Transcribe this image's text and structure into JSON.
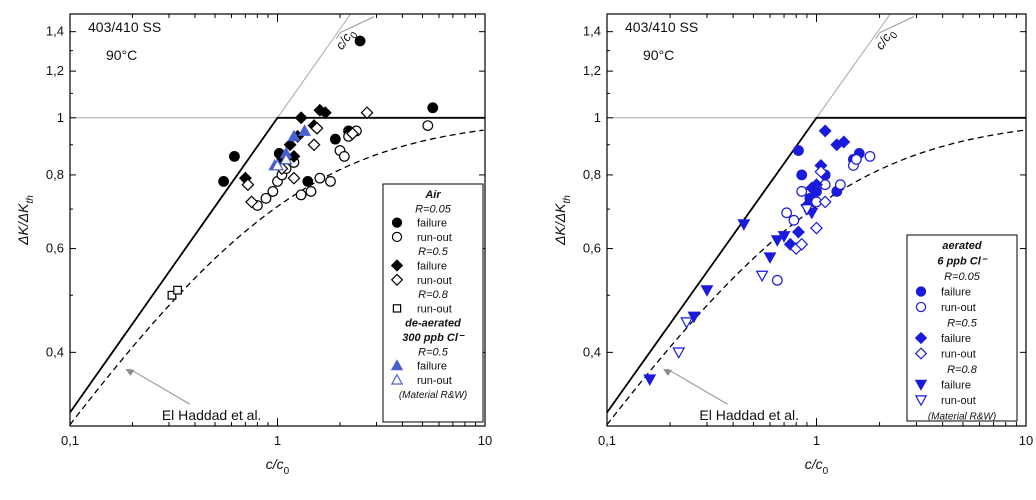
{
  "chart_data": [
    {
      "type": "scatter",
      "xscale": "log",
      "yscale": "log",
      "xlim": [
        0.1,
        10
      ],
      "ylim": [
        0.3,
        1.5
      ],
      "x_ticks": [
        0.1,
        1,
        10
      ],
      "x_tick_labels": [
        "0,1",
        "1",
        "10"
      ],
      "y_ticks": [
        0.4,
        0.6,
        0.8,
        1,
        1.2,
        1.4
      ],
      "y_tick_labels": [
        "0,4",
        "0,6",
        "0,8",
        "1",
        "1,2",
        "1,4"
      ],
      "xlabel": "c/c₀",
      "ylabel": "ΔK/ΔK_th",
      "xlabel_main": "c/c",
      "xlabel_sub": "0",
      "ylabel_main": "ΔK/ΔK",
      "ylabel_sub": "th",
      "material_label": "403/410 SS",
      "temperature_label": "90°C",
      "line_label": "c/c₀",
      "model_label": "El Haddad et al.",
      "legend": {
        "position": "bottom-right",
        "groups": [
          {
            "heading": "Air",
            "entries": [
              {
                "type": "r",
                "text": "R=0.05"
              },
              {
                "type": "marker",
                "marker": "circle-filled",
                "label": "failure"
              },
              {
                "type": "marker",
                "marker": "circle-open",
                "label": "run-out"
              },
              {
                "type": "r",
                "text": "R=0.5"
              },
              {
                "type": "marker",
                "marker": "diamond-filled",
                "label": "failure"
              },
              {
                "type": "marker",
                "marker": "diamond-open",
                "label": "run-out"
              },
              {
                "type": "r",
                "text": "R=0.8"
              },
              {
                "type": "marker",
                "marker": "square-open",
                "label": "run-out"
              }
            ]
          },
          {
            "heading": "de-aerated",
            "entries": [
              {
                "type": "subhead",
                "text": "300 ppb Cl⁻"
              },
              {
                "type": "r",
                "text": "R=0.5"
              },
              {
                "type": "marker",
                "marker": "triangle-up-filled",
                "label": "failure"
              },
              {
                "type": "marker",
                "marker": "triangle-up-open",
                "label": "run-out"
              },
              {
                "type": "note",
                "text": "(Material R&W)"
              }
            ]
          }
        ]
      },
      "series": [
        {
          "marker": "circle-filled",
          "color": "#000000",
          "points": [
            [
              0.55,
              0.78
            ],
            [
              0.62,
              0.86
            ],
            [
              1.02,
              0.87
            ],
            [
              1.05,
              0.85
            ],
            [
              1.4,
              0.78
            ],
            [
              1.9,
              0.92
            ],
            [
              2.2,
              0.95
            ],
            [
              2.5,
              1.35
            ],
            [
              5.6,
              1.04
            ]
          ]
        },
        {
          "marker": "circle-open",
          "color": "#000000",
          "points": [
            [
              0.8,
              0.71
            ],
            [
              0.88,
              0.73
            ],
            [
              0.95,
              0.75
            ],
            [
              1.0,
              0.78
            ],
            [
              1.05,
              0.8
            ],
            [
              1.1,
              0.82
            ],
            [
              1.2,
              0.84
            ],
            [
              1.3,
              0.74
            ],
            [
              1.45,
              0.75
            ],
            [
              1.6,
              0.79
            ],
            [
              1.8,
              0.78
            ],
            [
              2.0,
              0.88
            ],
            [
              2.1,
              0.86
            ],
            [
              2.2,
              0.93
            ],
            [
              2.4,
              0.95
            ],
            [
              5.3,
              0.97
            ]
          ]
        },
        {
          "marker": "diamond-filled",
          "color": "#000000",
          "points": [
            [
              0.7,
              0.79
            ],
            [
              1.15,
              0.9
            ],
            [
              1.2,
              0.86
            ],
            [
              1.25,
              0.93
            ],
            [
              1.3,
              1.0
            ],
            [
              1.5,
              0.97
            ],
            [
              1.6,
              1.03
            ],
            [
              1.7,
              1.02
            ]
          ]
        },
        {
          "marker": "diamond-open",
          "color": "#000000",
          "points": [
            [
              0.72,
              0.77
            ],
            [
              0.75,
              0.72
            ],
            [
              1.05,
              0.82
            ],
            [
              1.2,
              0.79
            ],
            [
              1.5,
              0.9
            ],
            [
              1.55,
              0.96
            ],
            [
              2.3,
              0.94
            ],
            [
              2.7,
              1.02
            ]
          ]
        },
        {
          "marker": "square-open",
          "color": "#000000",
          "points": [
            [
              0.31,
              0.5
            ],
            [
              0.33,
              0.51
            ]
          ]
        },
        {
          "marker": "triangle-up-filled",
          "color": "#4a5fd0",
          "points": [
            [
              0.97,
              0.83
            ],
            [
              1.1,
              0.87
            ],
            [
              1.2,
              0.93
            ],
            [
              1.35,
              0.95
            ]
          ]
        },
        {
          "marker": "triangle-up-open",
          "color": "#4a5fd0",
          "points": [
            [
              1.0,
              0.83
            ],
            [
              1.1,
              0.85
            ]
          ]
        }
      ]
    },
    {
      "type": "scatter",
      "xscale": "log",
      "yscale": "log",
      "xlim": [
        0.1,
        10
      ],
      "ylim": [
        0.3,
        1.5
      ],
      "x_ticks": [
        0.1,
        1,
        10
      ],
      "x_tick_labels": [
        "0,1",
        "1",
        "10"
      ],
      "y_ticks": [
        0.4,
        0.6,
        0.8,
        1,
        1.2,
        1.4
      ],
      "y_tick_labels": [
        "0,4",
        "0,6",
        "0,8",
        "1",
        "1,2",
        "1,4"
      ],
      "xlabel": "c/c₀",
      "ylabel": "ΔK/ΔK_th",
      "xlabel_main": "c/c",
      "xlabel_sub": "0",
      "ylabel_main": "ΔK/ΔK",
      "ylabel_sub": "th",
      "material_label": "403/410 SS",
      "temperature_label": "90°C",
      "line_label": "c/c₀",
      "model_label": "El Haddad et al.",
      "legend": {
        "position": "bottom-right",
        "groups": [
          {
            "heading": "aerated",
            "entries": [
              {
                "type": "subhead",
                "text": "6 ppb Cl⁻"
              },
              {
                "type": "r",
                "text": "R=0.05"
              },
              {
                "type": "marker",
                "marker": "circle-filled",
                "label": "failure"
              },
              {
                "type": "marker",
                "marker": "circle-open",
                "label": "run-out"
              },
              {
                "type": "r",
                "text": "R=0.5"
              },
              {
                "type": "marker",
                "marker": "diamond-filled",
                "label": "failure"
              },
              {
                "type": "marker",
                "marker": "diamond-open",
                "label": "run-out"
              },
              {
                "type": "r",
                "text": "R=0.8"
              },
              {
                "type": "marker",
                "marker": "triangle-down-filled",
                "label": "failure"
              },
              {
                "type": "marker",
                "marker": "triangle-down-open",
                "label": "run-out"
              },
              {
                "type": "note",
                "text": "(Material R&W)"
              }
            ]
          }
        ]
      },
      "series": [
        {
          "marker": "circle-filled",
          "color": "#1a1adc",
          "points": [
            [
              0.82,
              0.88
            ],
            [
              0.85,
              0.8
            ],
            [
              0.93,
              0.73
            ],
            [
              1.0,
              0.75
            ],
            [
              1.1,
              0.8
            ],
            [
              1.25,
              0.75
            ],
            [
              1.5,
              0.85
            ],
            [
              1.6,
              0.87
            ]
          ]
        },
        {
          "marker": "circle-open",
          "color": "#1a1adc",
          "points": [
            [
              0.65,
              0.53
            ],
            [
              0.72,
              0.69
            ],
            [
              0.78,
              0.67
            ],
            [
              0.85,
              0.75
            ],
            [
              0.92,
              0.7
            ],
            [
              1.0,
              0.72
            ],
            [
              1.1,
              0.77
            ],
            [
              1.3,
              0.77
            ],
            [
              1.5,
              0.83
            ],
            [
              1.55,
              0.85
            ],
            [
              1.8,
              0.86
            ]
          ]
        },
        {
          "marker": "diamond-filled",
          "color": "#1a1adc",
          "points": [
            [
              0.75,
              0.61
            ],
            [
              0.82,
              0.64
            ],
            [
              0.9,
              0.71
            ],
            [
              0.95,
              0.76
            ],
            [
              1.0,
              0.77
            ],
            [
              1.05,
              0.83
            ],
            [
              1.1,
              0.95
            ],
            [
              1.25,
              0.9
            ],
            [
              1.35,
              0.91
            ]
          ]
        },
        {
          "marker": "diamond-open",
          "color": "#1a1adc",
          "points": [
            [
              0.8,
              0.6
            ],
            [
              0.85,
              0.61
            ],
            [
              1.0,
              0.65
            ],
            [
              1.05,
              0.81
            ],
            [
              1.1,
              0.72
            ]
          ]
        },
        {
          "marker": "triangle-down-filled",
          "color": "#1a1adc",
          "points": [
            [
              0.16,
              0.36
            ],
            [
              0.26,
              0.46
            ],
            [
              0.3,
              0.51
            ],
            [
              0.45,
              0.66
            ],
            [
              0.6,
              0.58
            ],
            [
              0.65,
              0.62
            ],
            [
              0.7,
              0.63
            ],
            [
              0.95,
              0.69
            ]
          ]
        },
        {
          "marker": "triangle-down-open",
          "color": "#1a1adc",
          "points": [
            [
              0.22,
              0.4
            ],
            [
              0.24,
              0.45
            ],
            [
              0.55,
              0.54
            ],
            [
              0.9,
              0.7
            ]
          ]
        }
      ]
    }
  ]
}
